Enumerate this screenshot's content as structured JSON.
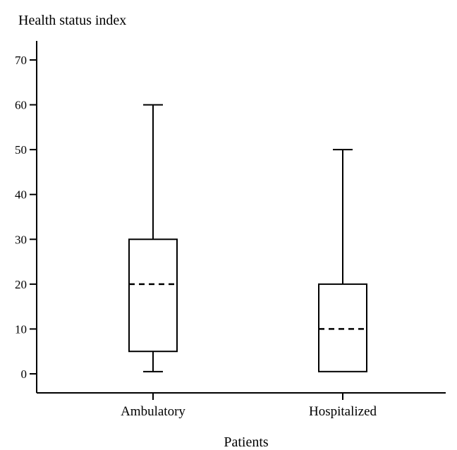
{
  "chart_data": {
    "type": "boxplot",
    "ylabel": "Health status index",
    "xlabel": "Patients",
    "ylim": [
      0,
      70
    ],
    "yticks": [
      0,
      10,
      20,
      30,
      40,
      50,
      60,
      70
    ],
    "categories": [
      "Ambulatory",
      "Hospitalized"
    ],
    "boxes": [
      {
        "category": "Ambulatory",
        "whisker_low": 0.5,
        "q1": 5,
        "median": 20,
        "q3": 30,
        "whisker_high": 60
      },
      {
        "category": "Hospitalized",
        "whisker_low": 0.5,
        "q1": 0.5,
        "median": 10,
        "q3": 20,
        "whisker_high": 50
      }
    ],
    "grid": false,
    "colors": {
      "stroke": "#000000",
      "background": "#ffffff"
    }
  }
}
